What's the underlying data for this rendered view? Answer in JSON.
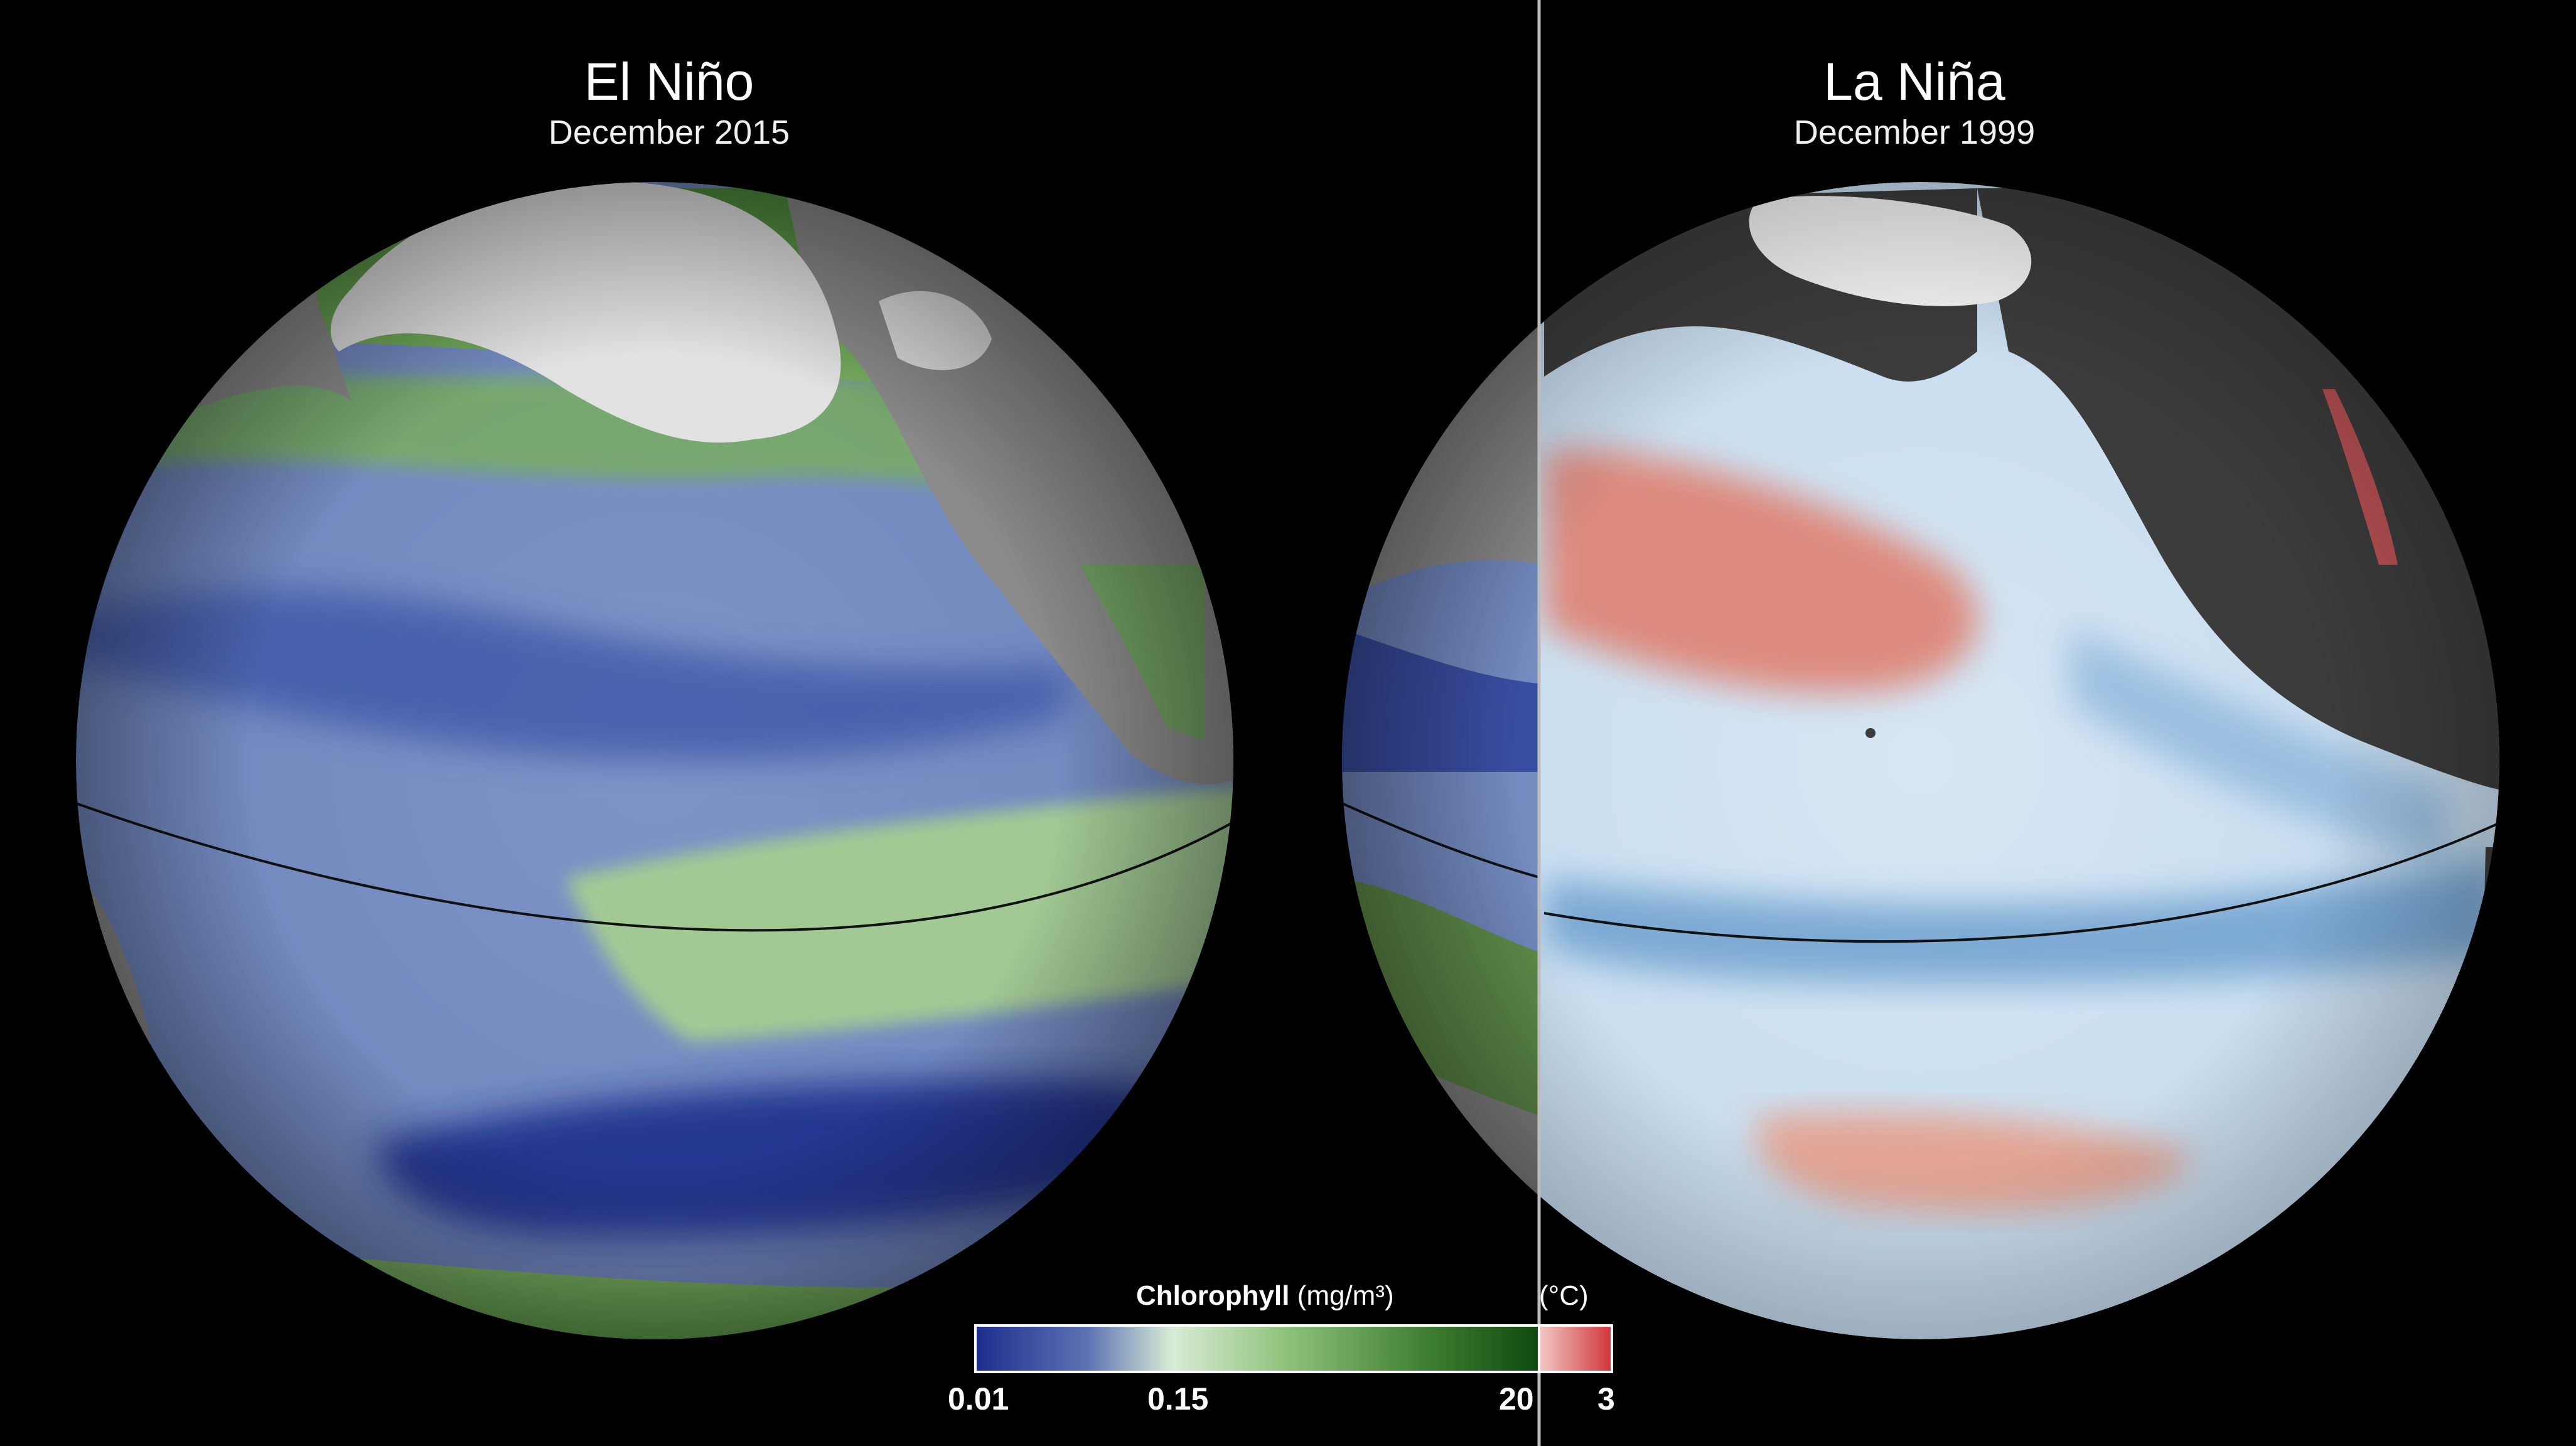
{
  "left_panel": {
    "title": "El Niño",
    "subtitle": "December 2015"
  },
  "right_panel": {
    "title": "La Niña",
    "subtitle": "December 1999"
  },
  "legend": {
    "title_bold": "Chlorophyll",
    "title_unit": "(mg/m³)",
    "temp_unit": "(°C)",
    "ticks": {
      "chl_min": "0.01",
      "chl_mid": "0.15",
      "chl_max": "20",
      "temp_max": "3"
    },
    "colors": {
      "chl_low": "#1d2d8c",
      "chl_mid": "#d9ecd6",
      "chl_high": "#0f4a0f",
      "temp_high": "#d0353a"
    }
  },
  "colors": {
    "land_left": "#8a8a8a",
    "ice": "#e2e2e2",
    "land_right": "#3c3c3c",
    "divider": "#bdbdbd"
  }
}
